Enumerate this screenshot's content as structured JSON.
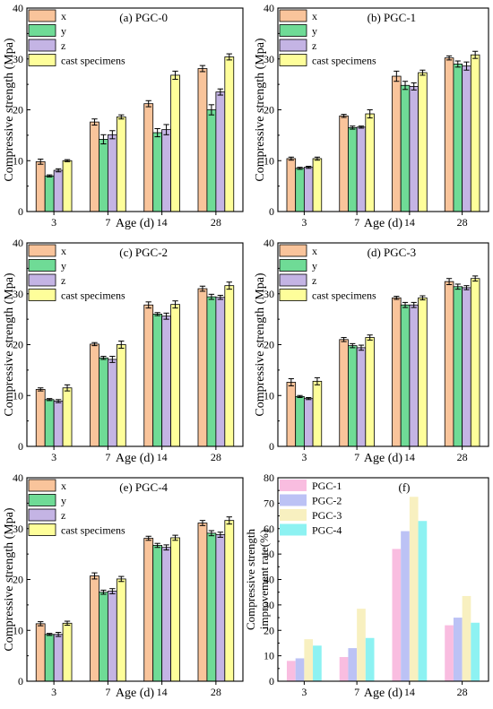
{
  "chart_data": [
    {
      "type": "bar",
      "title": "(a) PGC-0",
      "xlabel": "Age (d)",
      "ylabel": "Compressive strength (Mpa)",
      "categories": [
        "3",
        "7",
        "14",
        "28"
      ],
      "ylim": [
        0,
        40
      ],
      "yticks": [
        "0",
        "10",
        "20",
        "30",
        "40"
      ],
      "legend_position": "top-left",
      "series": [
        {
          "name": "x",
          "color": "#f9c49b",
          "values": [
            9.8,
            17.6,
            21.2,
            28.1
          ],
          "errors": [
            0.5,
            0.6,
            0.6,
            0.6
          ]
        },
        {
          "name": "y",
          "color": "#6fdb96",
          "values": [
            7.0,
            14.2,
            15.5,
            20.0
          ],
          "errors": [
            0.2,
            0.9,
            0.8,
            1.0
          ]
        },
        {
          "name": "z",
          "color": "#c4b4e4",
          "values": [
            8.1,
            15.1,
            16.1,
            23.5
          ],
          "errors": [
            0.3,
            0.8,
            1.0,
            0.6
          ]
        },
        {
          "name": "cast specimens",
          "color": "#fefe9a",
          "values": [
            10.0,
            18.6,
            26.8,
            30.4
          ],
          "errors": [
            0.2,
            0.4,
            0.8,
            0.6
          ]
        }
      ]
    },
    {
      "type": "bar",
      "title": "(b) PGC-1",
      "xlabel": "Age (d)",
      "ylabel": "Compressive strength (Mpa)",
      "categories": [
        "3",
        "7",
        "14",
        "28"
      ],
      "ylim": [
        0,
        40
      ],
      "yticks": [
        "0",
        "10",
        "20",
        "30",
        "40"
      ],
      "legend_position": "top-left",
      "series": [
        {
          "name": "x",
          "color": "#f9c49b",
          "values": [
            10.4,
            18.8,
            26.6,
            30.2
          ],
          "errors": [
            0.3,
            0.3,
            1.0,
            0.4
          ]
        },
        {
          "name": "y",
          "color": "#6fdb96",
          "values": [
            8.5,
            16.5,
            24.8,
            29.0
          ],
          "errors": [
            0.2,
            0.3,
            0.8,
            0.6
          ]
        },
        {
          "name": "z",
          "color": "#c4b4e4",
          "values": [
            8.7,
            16.6,
            24.6,
            28.6
          ],
          "errors": [
            0.2,
            0.2,
            0.7,
            0.8
          ]
        },
        {
          "name": "cast specimens",
          "color": "#fefe9a",
          "values": [
            10.4,
            19.2,
            27.3,
            30.8
          ],
          "errors": [
            0.3,
            0.8,
            0.5,
            0.7
          ]
        }
      ]
    },
    {
      "type": "bar",
      "title": "(c) PGC-2",
      "xlabel": "Age (d)",
      "ylabel": "Compressive strength (Mpa)",
      "categories": [
        "3",
        "7",
        "14",
        "28"
      ],
      "ylim": [
        0,
        40
      ],
      "yticks": [
        "0",
        "10",
        "20",
        "30",
        "40"
      ],
      "legend_position": "top-left",
      "series": [
        {
          "name": "x",
          "color": "#f9c49b",
          "values": [
            11.2,
            20.1,
            27.8,
            31.0
          ],
          "errors": [
            0.3,
            0.3,
            0.6,
            0.5
          ]
        },
        {
          "name": "y",
          "color": "#6fdb96",
          "values": [
            9.2,
            17.4,
            26.0,
            29.4
          ],
          "errors": [
            0.2,
            0.3,
            0.3,
            0.5
          ]
        },
        {
          "name": "z",
          "color": "#c4b4e4",
          "values": [
            8.9,
            17.1,
            25.6,
            29.3
          ],
          "errors": [
            0.3,
            0.6,
            0.6,
            0.4
          ]
        },
        {
          "name": "cast specimens",
          "color": "#fefe9a",
          "values": [
            11.5,
            20.0,
            27.9,
            31.6
          ],
          "errors": [
            0.6,
            0.7,
            0.7,
            0.7
          ]
        }
      ]
    },
    {
      "type": "bar",
      "title": "(d) PGC-3",
      "xlabel": "Age (d)",
      "ylabel": "Compressive strength (Mpa)",
      "categories": [
        "3",
        "7",
        "14",
        "28"
      ],
      "ylim": [
        0,
        40
      ],
      "yticks": [
        "0",
        "10",
        "20",
        "30",
        "40"
      ],
      "legend_position": "top-left",
      "series": [
        {
          "name": "x",
          "color": "#f9c49b",
          "values": [
            12.6,
            21.0,
            29.2,
            32.4
          ],
          "errors": [
            0.7,
            0.4,
            0.3,
            0.6
          ]
        },
        {
          "name": "y",
          "color": "#6fdb96",
          "values": [
            9.8,
            19.8,
            27.8,
            31.4
          ],
          "errors": [
            0.2,
            0.4,
            0.5,
            0.5
          ]
        },
        {
          "name": "z",
          "color": "#c4b4e4",
          "values": [
            9.4,
            19.4,
            27.8,
            31.2
          ],
          "errors": [
            0.2,
            0.5,
            0.5,
            0.4
          ]
        },
        {
          "name": "cast specimens",
          "color": "#fefe9a",
          "values": [
            12.8,
            21.4,
            29.2,
            33.0
          ],
          "errors": [
            0.7,
            0.5,
            0.4,
            0.5
          ]
        }
      ]
    },
    {
      "type": "bar",
      "title": "(e) PGC-4",
      "xlabel": "Age (d)",
      "ylabel": "Compressive strength (Mpa)",
      "categories": [
        "3",
        "7",
        "14",
        "28"
      ],
      "ylim": [
        0,
        40
      ],
      "yticks": [
        "0",
        "10",
        "20",
        "30",
        "40"
      ],
      "legend_position": "top-left",
      "series": [
        {
          "name": "x",
          "color": "#f9c49b",
          "values": [
            11.3,
            20.7,
            28.1,
            31.1
          ],
          "errors": [
            0.4,
            0.6,
            0.4,
            0.5
          ]
        },
        {
          "name": "y",
          "color": "#6fdb96",
          "values": [
            9.2,
            17.5,
            26.7,
            29.1
          ],
          "errors": [
            0.2,
            0.4,
            0.4,
            0.5
          ]
        },
        {
          "name": "z",
          "color": "#c4b4e4",
          "values": [
            9.2,
            17.7,
            26.3,
            28.8
          ],
          "errors": [
            0.4,
            0.5,
            0.5,
            0.5
          ]
        },
        {
          "name": "cast specimens",
          "color": "#fefe9a",
          "values": [
            11.4,
            20.1,
            28.2,
            31.6
          ],
          "errors": [
            0.4,
            0.5,
            0.5,
            0.7
          ]
        }
      ]
    },
    {
      "type": "bar",
      "title": "(f)",
      "xlabel": "Age (d)",
      "ylabel": "Compressive strength improvement rate(%)",
      "categories": [
        "3",
        "7",
        "14",
        "28"
      ],
      "ylim": [
        0,
        80
      ],
      "yticks": [
        "0",
        "10",
        "20",
        "30",
        "40",
        "50",
        "60",
        "70",
        "80"
      ],
      "legend_position": "top-left",
      "series": [
        {
          "name": "PGC-1",
          "color": "#f9bde0",
          "values": [
            8,
            9.5,
            52,
            22
          ]
        },
        {
          "name": "PGC-2",
          "color": "#bcc2f5",
          "values": [
            9,
            13,
            59,
            25
          ]
        },
        {
          "name": "PGC-3",
          "color": "#f8f0c0",
          "values": [
            16.5,
            28.5,
            72.5,
            33.5
          ]
        },
        {
          "name": "PGC-4",
          "color": "#8df2f2",
          "values": [
            14,
            17,
            63,
            23
          ]
        }
      ]
    }
  ]
}
